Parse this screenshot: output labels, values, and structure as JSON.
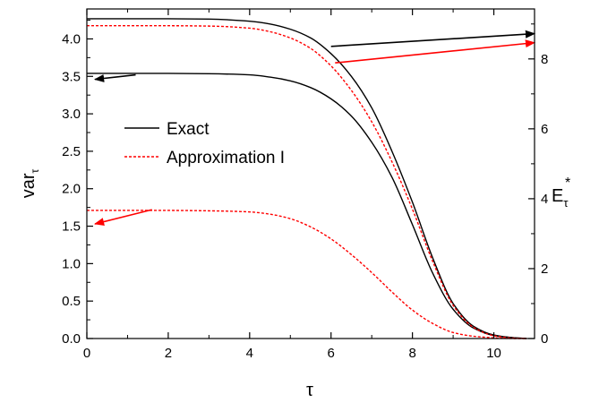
{
  "chart_data": {
    "type": "line",
    "xlabel": "τ",
    "ylabel_left": {
      "base": "var",
      "sub": "τ"
    },
    "ylabel_right": {
      "base": "E",
      "sub": "τ",
      "sup": "*"
    },
    "xlim": [
      0,
      11
    ],
    "ylim_left": [
      0,
      4.4
    ],
    "ylim_right": [
      0,
      9.43
    ],
    "x_ticks": [
      0,
      2,
      4,
      6,
      8,
      10
    ],
    "y_left_ticks": [
      "0.0",
      "0.5",
      "1.0",
      "1.5",
      "2.0",
      "2.5",
      "3.0",
      "3.5",
      "4.0"
    ],
    "y_right_ticks": [
      0,
      2,
      4,
      6,
      8
    ],
    "grid": false,
    "legend_position": "upper-left",
    "legend": [
      {
        "label": "Exact",
        "style": "solid",
        "color": "#000000"
      },
      {
        "label": "Approximation I",
        "style": "dashed",
        "color": "#ff0000"
      }
    ],
    "series": [
      {
        "axis": "left",
        "style": "solid",
        "color": "#000000",
        "x": [
          0,
          1,
          2,
          3,
          4,
          4.5,
          5,
          5.5,
          6,
          6.5,
          7,
          7.5,
          8,
          8.5,
          9,
          9.5,
          10,
          10.5,
          10.8
        ],
        "y": [
          3.54,
          3.54,
          3.54,
          3.535,
          3.52,
          3.49,
          3.44,
          3.35,
          3.2,
          2.97,
          2.62,
          2.15,
          1.52,
          0.87,
          0.39,
          0.14,
          0.04,
          0.01,
          0.0
        ]
      },
      {
        "axis": "right",
        "style": "solid",
        "color": "#000000",
        "x": [
          0,
          1,
          2,
          3,
          4,
          4.5,
          5,
          5.5,
          6,
          6.5,
          7,
          7.5,
          8,
          8.5,
          9,
          9.5,
          10,
          10.5,
          10.8
        ],
        "y": [
          9.15,
          9.15,
          9.15,
          9.14,
          9.08,
          9.0,
          8.85,
          8.6,
          8.15,
          7.5,
          6.6,
          5.35,
          3.9,
          2.3,
          1.0,
          0.35,
          0.1,
          0.02,
          0.0
        ]
      },
      {
        "axis": "left",
        "style": "dashed",
        "color": "#ff0000",
        "x": [
          0,
          1,
          2,
          3,
          4,
          4.5,
          5,
          5.5,
          6,
          6.5,
          7,
          7.5,
          8,
          8.5,
          9,
          9.5,
          10,
          10.5,
          10.8
        ],
        "y": [
          1.71,
          1.71,
          1.71,
          1.705,
          1.69,
          1.66,
          1.6,
          1.49,
          1.33,
          1.12,
          0.88,
          0.62,
          0.38,
          0.2,
          0.08,
          0.03,
          0.01,
          0.0,
          0.0
        ]
      },
      {
        "axis": "right",
        "style": "dashed",
        "color": "#ff0000",
        "x": [
          0,
          1,
          2,
          3,
          4,
          4.5,
          5,
          5.5,
          6,
          6.5,
          7,
          7.5,
          8,
          8.5,
          9,
          9.5,
          10,
          10.5,
          10.8
        ],
        "y": [
          8.95,
          8.95,
          8.95,
          8.94,
          8.88,
          8.78,
          8.6,
          8.3,
          7.8,
          7.1,
          6.2,
          5.05,
          3.7,
          2.2,
          0.95,
          0.32,
          0.08,
          0.01,
          0.0
        ]
      }
    ],
    "annotations": [
      {
        "from": [
          6.0,
          3.9
        ],
        "to": [
          11.0,
          4.07
        ],
        "color": "#000000",
        "points_to": "right-axis"
      },
      {
        "from": [
          1.2,
          3.52
        ],
        "to": [
          0.2,
          3.46
        ],
        "color": "#000000",
        "points_to": "left-axis"
      },
      {
        "from": [
          6.1,
          3.68
        ],
        "to": [
          11.0,
          3.95
        ],
        "color": "#ff0000",
        "points_to": "right-axis"
      },
      {
        "from": [
          1.6,
          1.72
        ],
        "to": [
          0.2,
          1.53
        ],
        "color": "#ff0000",
        "points_to": "left-axis"
      }
    ]
  }
}
